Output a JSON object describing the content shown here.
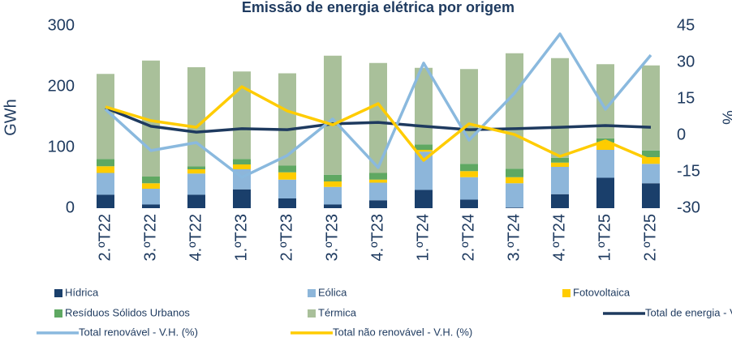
{
  "chart_data": {
    "type": "bar",
    "title": "Emissão de energia elétrica por origem",
    "ylabel": "GWh",
    "y2label": "%",
    "categories": [
      "2.ºT22",
      "3.ºT22",
      "4.ºT22",
      "1.ºT23",
      "2.ºT23",
      "3.ºT23",
      "4.ºT23",
      "1.ºT24",
      "2.ºT24",
      "3.ºT24",
      "4.ºT24",
      "1.ºT25",
      "2.ºT25"
    ],
    "ylim": [
      0,
      300
    ],
    "yticks": [
      0,
      100,
      200,
      300
    ],
    "y2lim": [
      -30,
      45
    ],
    "y2ticks": [
      -30,
      -15,
      0,
      15,
      30,
      45
    ],
    "series": [
      {
        "name": "Hídrica",
        "type": "bar",
        "color": "#1a3f6b",
        "values": [
          22,
          6,
          22,
          31,
          16,
          6,
          13,
          30,
          14,
          1,
          23,
          50,
          41
        ]
      },
      {
        "name": "Eólica",
        "type": "bar",
        "color": "#8db6da",
        "values": [
          36,
          26,
          35,
          33,
          31,
          29,
          29,
          63,
          37,
          40,
          45,
          46,
          32
        ]
      },
      {
        "name": "Fotovoltaica",
        "type": "bar",
        "color": "#ffcc00",
        "values": [
          11,
          9,
          7,
          8,
          12,
          9,
          5,
          3,
          10,
          10,
          7,
          12,
          11
        ]
      },
      {
        "name": "Resíduos Sólidos Urbanos",
        "type": "bar",
        "color": "#5fa862",
        "values": [
          12,
          11,
          5,
          9,
          11,
          11,
          11,
          9,
          12,
          14,
          8,
          7,
          11
        ]
      },
      {
        "name": "Térmica",
        "type": "bar",
        "color": "#a9c09a",
        "values": [
          140,
          191,
          163,
          144,
          152,
          196,
          181,
          126,
          156,
          190,
          164,
          122,
          140
        ]
      },
      {
        "name": "Total de energia - V.H. (%)",
        "type": "line",
        "axis": "y2",
        "color": "#1e3a5f",
        "values": [
          11.3,
          3.7,
          1.3,
          2.7,
          2.3,
          4.7,
          5.3,
          3.7,
          2.3,
          2.7,
          3.3,
          4,
          3.3
        ]
      },
      {
        "name": "Total renovável - V.H. (%)",
        "type": "line",
        "axis": "y2",
        "color": "#8ab9de",
        "values": [
          10.7,
          -6.3,
          -3,
          -17.3,
          -8.3,
          6.7,
          -13.3,
          29.7,
          -2,
          17.3,
          41.7,
          10.7,
          33
        ]
      },
      {
        "name": "Total não renovável - V.H. (%)",
        "type": "line",
        "axis": "y2",
        "color": "#ffcc00",
        "values": [
          11.7,
          6,
          3.3,
          20,
          10,
          4.3,
          13,
          -10.3,
          4.7,
          0.3,
          -8.7,
          -2.3,
          -10.3
        ]
      }
    ]
  }
}
